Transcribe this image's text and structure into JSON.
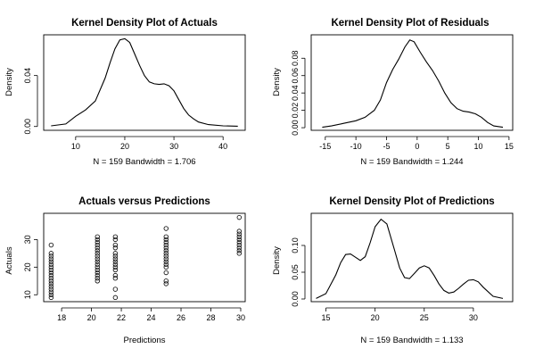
{
  "chart_data": [
    {
      "type": "line",
      "title": "Kernel Density Plot of Actuals",
      "xlabel": "N = 159   Bandwidth = 1.706",
      "ylabel": "Density",
      "xlim": [
        3.5,
        44.5
      ],
      "ylim": [
        -0.003,
        0.072
      ],
      "xticks": [
        10,
        20,
        30,
        40
      ],
      "yticks": [
        0.0,
        0.04
      ],
      "ytick_labels": [
        "0.00",
        "0.04"
      ],
      "x": [
        5,
        8,
        10,
        12,
        14,
        16,
        17,
        18,
        19,
        20,
        21,
        22,
        23,
        24,
        25,
        26,
        27,
        28,
        29,
        30,
        31,
        32,
        33,
        34,
        35,
        37,
        40,
        43
      ],
      "y": [
        0.0005,
        0.002,
        0.008,
        0.013,
        0.02,
        0.038,
        0.05,
        0.061,
        0.068,
        0.069,
        0.066,
        0.057,
        0.048,
        0.04,
        0.035,
        0.0335,
        0.033,
        0.0335,
        0.032,
        0.028,
        0.021,
        0.014,
        0.009,
        0.006,
        0.0035,
        0.0015,
        0.0005,
        0.0002
      ]
    },
    {
      "type": "line",
      "title": "Kernel Density Plot of Residuals",
      "xlabel": "N = 159   Bandwidth = 1.244",
      "ylabel": "Density",
      "xlim": [
        -17.3,
        15.6
      ],
      "ylim": [
        -0.003,
        0.107
      ],
      "xticks": [
        -15,
        -10,
        -5,
        0,
        5,
        10,
        15
      ],
      "yticks": [
        0.0,
        0.02,
        0.04,
        0.06,
        0.08
      ],
      "ytick_labels": [
        "0.00",
        "0.02",
        "0.04",
        "0.06",
        "0.08"
      ],
      "x": [
        -15.5,
        -14,
        -12,
        -10,
        -8.5,
        -7,
        -6,
        -5,
        -4,
        -3,
        -2,
        -1.2,
        -0.5,
        0.5,
        1.5,
        2.5,
        3.5,
        4.5,
        5.5,
        6.5,
        7.5,
        8.5,
        9.5,
        10.5,
        11.5,
        12.5,
        14
      ],
      "y": [
        0.0005,
        0.002,
        0.005,
        0.008,
        0.012,
        0.02,
        0.032,
        0.052,
        0.067,
        0.079,
        0.093,
        0.101,
        0.099,
        0.087,
        0.076,
        0.066,
        0.054,
        0.04,
        0.029,
        0.022,
        0.019,
        0.018,
        0.016,
        0.012,
        0.006,
        0.002,
        0.0005
      ]
    },
    {
      "type": "scatter",
      "title": "Actuals versus Predictions",
      "xlabel": "Predictions",
      "ylabel": "Actuals",
      "xlim": [
        16.8,
        30.3
      ],
      "ylim": [
        7.5,
        39.5
      ],
      "xticks": [
        18,
        20,
        22,
        24,
        26,
        28,
        30
      ],
      "yticks": [
        10,
        20,
        30
      ],
      "groups": [
        {
          "x": 17.3,
          "y": [
            9,
            10,
            11,
            12,
            13,
            14,
            15,
            16,
            17,
            18,
            19,
            20,
            21,
            22,
            23,
            24,
            25,
            28
          ]
        },
        {
          "x": 20.4,
          "y": [
            15,
            16,
            17,
            18,
            19,
            20,
            21,
            22,
            23,
            24,
            25,
            26,
            27,
            28,
            29,
            30,
            31
          ]
        },
        {
          "x": 21.6,
          "y": [
            9,
            12,
            16,
            17,
            19,
            20,
            21,
            22,
            23,
            24,
            25,
            27,
            28,
            30,
            31
          ]
        },
        {
          "x": 25.0,
          "y": [
            14,
            15,
            18,
            20,
            21,
            22,
            23,
            24,
            25,
            26,
            27,
            28,
            29,
            30,
            31,
            34
          ]
        },
        {
          "x": 29.9,
          "y": [
            25,
            26,
            27,
            28,
            29,
            30,
            31,
            32,
            33,
            38
          ]
        }
      ]
    },
    {
      "type": "line",
      "title": "Kernel Density Plot of Predictions",
      "xlabel": "N = 159   Bandwidth = 1.133",
      "ylabel": "Density",
      "xlim": [
        13.5,
        34
      ],
      "ylim": [
        -0.005,
        0.16
      ],
      "xticks": [
        15,
        20,
        25,
        30
      ],
      "yticks": [
        0.0,
        0.05,
        0.1
      ],
      "ytick_labels": [
        "0.00",
        "0.05",
        "0.10"
      ],
      "x": [
        14,
        15,
        16,
        16.5,
        17,
        17.5,
        18,
        18.5,
        19,
        19.5,
        20,
        20.6,
        21.2,
        22,
        22.5,
        23,
        23.5,
        24,
        24.5,
        25,
        25.5,
        26,
        26.5,
        27,
        27.5,
        28,
        28.5,
        29,
        29.5,
        30,
        30.5,
        31,
        32,
        33
      ],
      "y": [
        0.001,
        0.01,
        0.045,
        0.068,
        0.083,
        0.084,
        0.078,
        0.072,
        0.079,
        0.105,
        0.135,
        0.149,
        0.14,
        0.09,
        0.058,
        0.04,
        0.038,
        0.048,
        0.058,
        0.062,
        0.058,
        0.044,
        0.028,
        0.016,
        0.011,
        0.013,
        0.02,
        0.028,
        0.035,
        0.036,
        0.032,
        0.022,
        0.005,
        0.001
      ]
    }
  ]
}
